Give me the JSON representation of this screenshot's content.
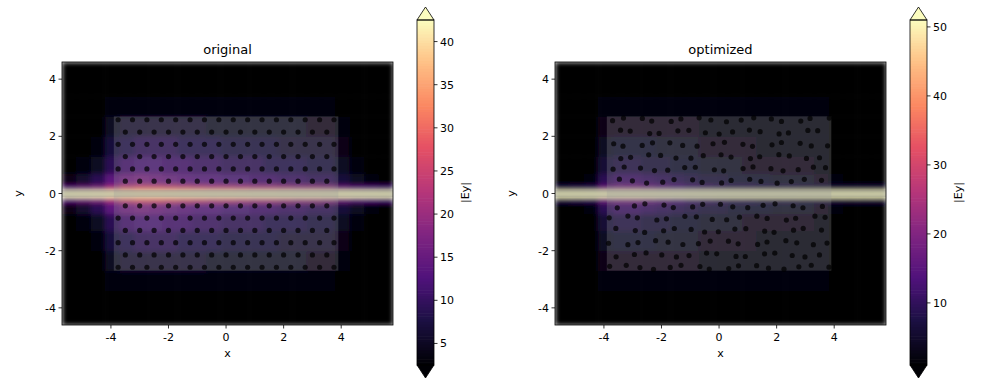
{
  "chart_data": [
    {
      "type": "heatmap",
      "title": "original",
      "xlabel": "x",
      "ylabel": "y",
      "xlim": [
        -5.7,
        5.8
      ],
      "ylim": [
        -4.6,
        4.6
      ],
      "xticks": [
        -4,
        -2,
        0,
        2,
        4
      ],
      "yticks": [
        -4,
        -2,
        0,
        2,
        4
      ],
      "x_bins": [
        -5.7,
        -5.2,
        -4.7,
        -4.2,
        -3.7,
        -3.2,
        -2.7,
        -2.2,
        -1.7,
        -1.2,
        -0.7,
        -0.2,
        0.3,
        0.8,
        1.3,
        1.8,
        2.3,
        2.8,
        3.3,
        3.8,
        4.3,
        4.8,
        5.3,
        5.8
      ],
      "y_bins": [
        -4.6,
        -3.4,
        -2.7,
        -2.0,
        -1.3,
        -0.7,
        -0.3,
        -0.12,
        0.12,
        0.3,
        0.7,
        1.3,
        2.0,
        2.7,
        3.4,
        4.6
      ],
      "values": [
        [
          2,
          2,
          2,
          2,
          2,
          2,
          2,
          2,
          2,
          2,
          2,
          2,
          2,
          2,
          2,
          2,
          2,
          2,
          2,
          2,
          2,
          2,
          2
        ],
        [
          2,
          2,
          2,
          3,
          3,
          3,
          3,
          3,
          3,
          3,
          3,
          3,
          3,
          3,
          3,
          3,
          3,
          3,
          3,
          2,
          2,
          2,
          2
        ],
        [
          2,
          2,
          2,
          5,
          6,
          6,
          6,
          6,
          6,
          6,
          5,
          5,
          5,
          5,
          5,
          5,
          5,
          4,
          4,
          3,
          2,
          2,
          2
        ],
        [
          2,
          2,
          3,
          7,
          8,
          9,
          9,
          9,
          8,
          8,
          8,
          7,
          7,
          7,
          7,
          6,
          6,
          6,
          6,
          4,
          2,
          2,
          2
        ],
        [
          2,
          3,
          5,
          9,
          11,
          12,
          12,
          11,
          11,
          10,
          10,
          9,
          9,
          9,
          8,
          8,
          8,
          7,
          7,
          5,
          3,
          2,
          2
        ],
        [
          4,
          6,
          9,
          14,
          16,
          17,
          16,
          15,
          14,
          13,
          13,
          12,
          12,
          11,
          11,
          10,
          10,
          9,
          9,
          7,
          5,
          3,
          2
        ],
        [
          14,
          16,
          18,
          22,
          26,
          28,
          28,
          27,
          26,
          25,
          24,
          24,
          23,
          22,
          22,
          21,
          20,
          20,
          19,
          16,
          14,
          13,
          12
        ],
        [
          60,
          60,
          60,
          60,
          60,
          60,
          60,
          60,
          60,
          60,
          60,
          60,
          60,
          60,
          60,
          60,
          60,
          60,
          60,
          60,
          60,
          60,
          60
        ],
        [
          14,
          16,
          18,
          22,
          26,
          28,
          28,
          27,
          26,
          25,
          24,
          24,
          23,
          22,
          22,
          21,
          20,
          20,
          19,
          16,
          14,
          13,
          12
        ],
        [
          4,
          6,
          9,
          14,
          16,
          17,
          16,
          15,
          14,
          13,
          13,
          12,
          12,
          11,
          11,
          10,
          10,
          9,
          9,
          7,
          5,
          3,
          2
        ],
        [
          2,
          3,
          5,
          9,
          11,
          12,
          12,
          11,
          11,
          10,
          10,
          9,
          9,
          9,
          8,
          8,
          8,
          7,
          7,
          5,
          3,
          2,
          2
        ],
        [
          2,
          2,
          3,
          7,
          8,
          9,
          9,
          9,
          8,
          8,
          8,
          7,
          7,
          7,
          7,
          6,
          6,
          6,
          6,
          4,
          2,
          2,
          2
        ],
        [
          2,
          2,
          2,
          5,
          6,
          6,
          6,
          6,
          6,
          6,
          5,
          5,
          5,
          5,
          5,
          5,
          5,
          4,
          4,
          3,
          2,
          2,
          2
        ],
        [
          2,
          2,
          2,
          3,
          3,
          3,
          3,
          3,
          3,
          3,
          3,
          3,
          3,
          3,
          3,
          3,
          3,
          3,
          3,
          2,
          2,
          2,
          2
        ],
        [
          2,
          2,
          2,
          2,
          2,
          2,
          2,
          2,
          2,
          2,
          2,
          2,
          2,
          2,
          2,
          2,
          2,
          2,
          2,
          2,
          2,
          2,
          2
        ]
      ],
      "colorbar": {
        "range": [
          2.5,
          42.5
        ],
        "ticks": [
          5,
          10,
          15,
          20,
          25,
          30,
          35,
          40
        ],
        "label": "|Ey|"
      }
    },
    {
      "type": "heatmap",
      "title": "optimized",
      "xlabel": "x",
      "ylabel": "y",
      "xlim": [
        -5.7,
        5.8
      ],
      "ylim": [
        -4.6,
        4.6
      ],
      "xticks": [
        -4,
        -2,
        0,
        2,
        4
      ],
      "yticks": [
        -4,
        -2,
        0,
        2,
        4
      ],
      "x_bins": [
        -5.7,
        -5.2,
        -4.7,
        -4.2,
        -3.7,
        -3.2,
        -2.7,
        -2.2,
        -1.7,
        -1.2,
        -0.7,
        -0.2,
        0.3,
        0.8,
        1.3,
        1.8,
        2.3,
        2.8,
        3.3,
        3.8,
        4.3,
        4.8,
        5.3,
        5.8
      ],
      "y_bins": [
        -4.6,
        -3.4,
        -2.7,
        -2.0,
        -1.3,
        -0.7,
        -0.3,
        -0.12,
        0.12,
        0.3,
        0.7,
        1.3,
        2.0,
        2.7,
        3.4,
        4.6
      ],
      "values": [
        [
          1,
          1,
          1,
          1,
          1,
          1,
          1,
          1,
          1,
          1,
          1,
          1,
          1,
          1,
          1,
          1,
          1,
          1,
          1,
          1,
          1,
          1,
          1
        ],
        [
          1,
          1,
          1,
          2,
          2,
          2,
          2,
          2,
          2,
          2,
          2,
          2,
          2,
          2,
          2,
          2,
          2,
          2,
          2,
          1,
          1,
          1,
          1
        ],
        [
          1,
          1,
          1,
          3,
          3,
          3,
          3,
          3,
          3,
          3,
          2,
          2,
          2,
          2,
          2,
          2,
          2,
          2,
          2,
          1,
          1,
          1,
          1
        ],
        [
          1,
          1,
          1,
          4,
          5,
          5,
          5,
          4,
          4,
          4,
          3,
          3,
          3,
          3,
          2,
          2,
          2,
          2,
          2,
          1,
          1,
          1,
          1
        ],
        [
          1,
          1,
          1,
          6,
          7,
          7,
          6,
          6,
          5,
          5,
          4,
          4,
          4,
          3,
          3,
          3,
          3,
          3,
          2,
          1,
          1,
          1,
          1
        ],
        [
          1,
          1,
          2,
          9,
          11,
          11,
          10,
          9,
          8,
          7,
          6,
          6,
          5,
          5,
          5,
          4,
          4,
          4,
          3,
          2,
          1,
          1,
          1
        ],
        [
          8,
          9,
          10,
          18,
          20,
          20,
          18,
          16,
          14,
          12,
          11,
          10,
          9,
          9,
          8,
          8,
          8,
          7,
          7,
          7,
          7,
          7,
          7
        ],
        [
          60,
          60,
          60,
          60,
          60,
          60,
          60,
          60,
          60,
          60,
          60,
          60,
          60,
          60,
          60,
          60,
          60,
          60,
          60,
          60,
          60,
          60,
          60
        ],
        [
          8,
          9,
          10,
          18,
          20,
          20,
          18,
          16,
          14,
          12,
          11,
          10,
          9,
          9,
          8,
          8,
          8,
          7,
          7,
          7,
          7,
          7,
          7
        ],
        [
          1,
          1,
          2,
          9,
          11,
          11,
          10,
          9,
          8,
          7,
          6,
          6,
          5,
          5,
          5,
          4,
          4,
          4,
          3,
          2,
          1,
          1,
          1
        ],
        [
          1,
          1,
          1,
          6,
          7,
          7,
          6,
          6,
          5,
          5,
          4,
          4,
          4,
          3,
          3,
          3,
          3,
          3,
          2,
          1,
          1,
          1,
          1
        ],
        [
          1,
          1,
          1,
          4,
          5,
          5,
          5,
          4,
          4,
          4,
          3,
          3,
          3,
          3,
          2,
          2,
          2,
          2,
          2,
          1,
          1,
          1,
          1
        ],
        [
          1,
          1,
          1,
          3,
          3,
          3,
          3,
          3,
          3,
          3,
          2,
          2,
          2,
          2,
          2,
          2,
          2,
          2,
          2,
          1,
          1,
          1,
          1
        ],
        [
          1,
          1,
          1,
          2,
          2,
          2,
          2,
          2,
          2,
          2,
          2,
          2,
          2,
          2,
          2,
          2,
          2,
          2,
          2,
          1,
          1,
          1,
          1
        ],
        [
          1,
          1,
          1,
          1,
          1,
          1,
          1,
          1,
          1,
          1,
          1,
          1,
          1,
          1,
          1,
          1,
          1,
          1,
          1,
          1,
          1,
          1,
          1
        ]
      ],
      "colorbar": {
        "range": [
          1,
          51
        ],
        "ticks": [
          10,
          20,
          30,
          40,
          50
        ],
        "label": "|Ey|"
      }
    }
  ]
}
